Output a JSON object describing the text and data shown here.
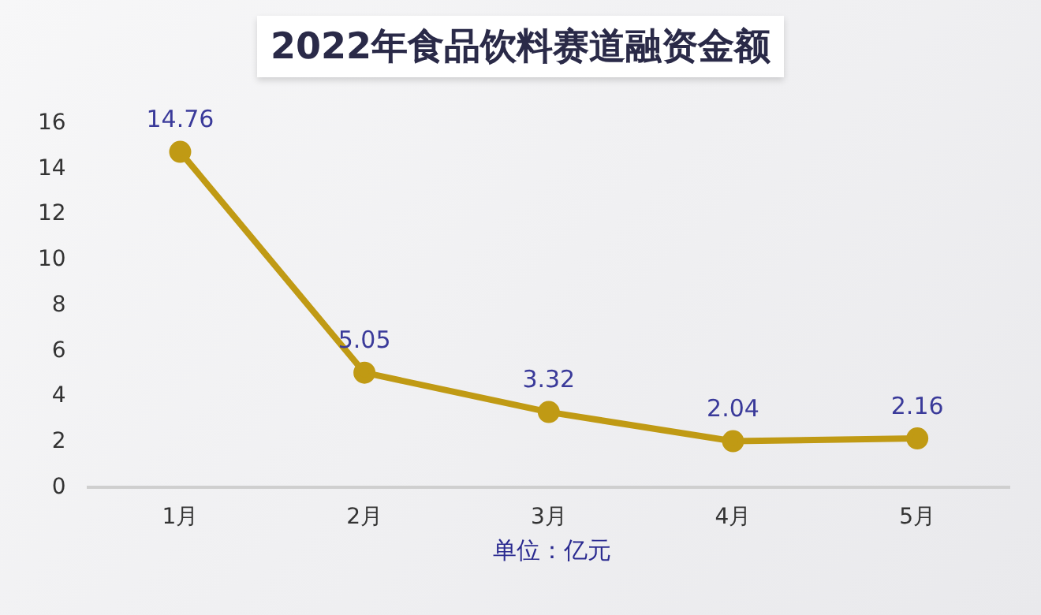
{
  "chart_data": {
    "type": "line",
    "title": "2022年食品饮料赛道融资金额",
    "xlabel": "单位：亿元",
    "categories": [
      "1月",
      "2月",
      "3月",
      "4月",
      "5月"
    ],
    "series": [
      {
        "color": "#c09a14",
        "values": [
          14.76,
          5.05,
          3.32,
          2.04,
          2.16
        ]
      }
    ],
    "ylim": [
      0,
      16
    ],
    "yticks": [
      0,
      2,
      4,
      6,
      8,
      10,
      12,
      14,
      16
    ],
    "grid": false,
    "legend": false,
    "marker": "circle",
    "data_labels": true
  }
}
